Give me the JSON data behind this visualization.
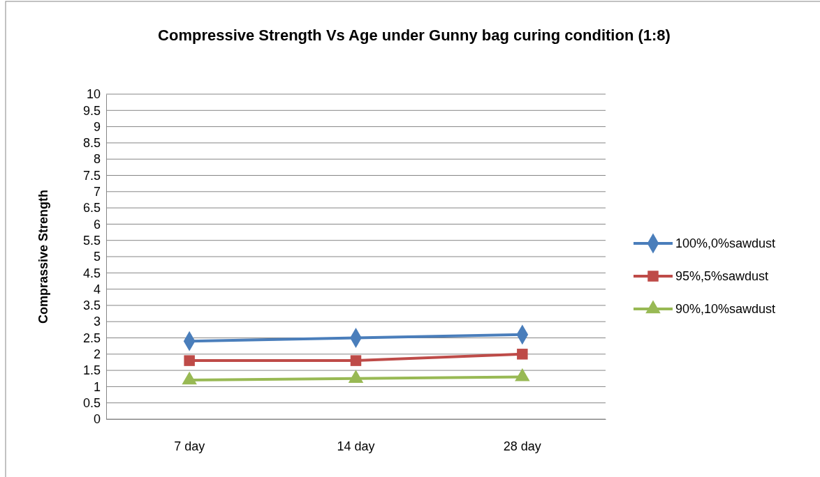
{
  "chart_data": {
    "type": "line",
    "title": "Compressive  Strength Vs Age under Gunny bag curing condition (1:8)",
    "ylabel": "Comprassive  Strength",
    "categories": [
      "7 day",
      "14 day",
      "28 day"
    ],
    "series": [
      {
        "name": "100%,0%sawdust",
        "color": "#4a7ebb",
        "marker": "diamond",
        "values": [
          2.4,
          2.5,
          2.6
        ]
      },
      {
        "name": "95%,5%sawdust",
        "color": "#be4b48",
        "marker": "square",
        "values": [
          1.8,
          1.8,
          2.0
        ]
      },
      {
        "name": "90%,10%sawdust",
        "color": "#98b954",
        "marker": "triangle",
        "values": [
          1.2,
          1.25,
          1.3
        ]
      }
    ],
    "ylim": [
      0,
      10
    ],
    "yticks": [
      0,
      0.5,
      1,
      1.5,
      2,
      2.5,
      3,
      3.5,
      4,
      4.5,
      5,
      5.5,
      6,
      6.5,
      7,
      7.5,
      8,
      8.5,
      9,
      9.5,
      10
    ],
    "grid": "y",
    "legend": "right",
    "line_style": "solid"
  }
}
